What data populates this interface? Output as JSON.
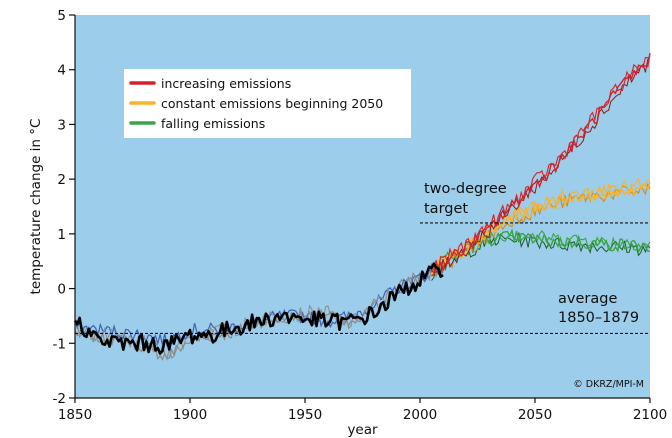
{
  "chart_data": {
    "type": "line",
    "xlabel": "year",
    "ylabel": "temperature change in °C",
    "xlim": [
      1850,
      2100
    ],
    "ylim": [
      -2,
      5
    ],
    "x_ticks": [
      1850,
      1900,
      1950,
      2000,
      2050,
      2100
    ],
    "y_ticks": [
      -2,
      -1,
      0,
      1,
      2,
      3,
      4,
      5
    ],
    "x_tick_labels": [
      "1850",
      "1900",
      "1950",
      "2000",
      "2050",
      "2100"
    ],
    "y_tick_labels": [
      "-2",
      "-1",
      "0",
      "1",
      "2",
      "3",
      "4",
      "5"
    ],
    "grid": false,
    "legend_position": "top-left",
    "colors": {
      "background": "#9ccdea",
      "increasing": "#d2232a",
      "constant": "#f9b22a",
      "falling": "#3aa545",
      "historical_observed": "#000000",
      "historical_model_blue": "#3a62b8",
      "historical_model_gray": "#8a8a8a"
    },
    "series": [
      {
        "name": "increasing emissions",
        "color": "#d2232a",
        "x": [
          2005,
          2010,
          2020,
          2030,
          2040,
          2050,
          2060,
          2070,
          2080,
          2090,
          2100
        ],
        "y": [
          0.3,
          0.45,
          0.75,
          1.1,
          1.5,
          1.9,
          2.3,
          2.8,
          3.3,
          3.8,
          4.2
        ]
      },
      {
        "name": "constant emissions beginning 2050",
        "color": "#f9b22a",
        "x": [
          2005,
          2010,
          2020,
          2030,
          2040,
          2050,
          2060,
          2070,
          2080,
          2090,
          2100
        ],
        "y": [
          0.3,
          0.45,
          0.7,
          1.0,
          1.3,
          1.45,
          1.6,
          1.7,
          1.75,
          1.8,
          1.85
        ]
      },
      {
        "name": "falling emissions",
        "color": "#3aa545",
        "x": [
          2005,
          2010,
          2020,
          2030,
          2040,
          2050,
          2060,
          2070,
          2080,
          2090,
          2100
        ],
        "y": [
          0.3,
          0.45,
          0.7,
          0.9,
          0.95,
          0.9,
          0.85,
          0.85,
          0.8,
          0.8,
          0.75
        ]
      }
    ],
    "historical": {
      "x": [
        1850,
        1860,
        1870,
        1880,
        1890,
        1900,
        1910,
        1920,
        1930,
        1940,
        1950,
        1960,
        1970,
        1980,
        1990,
        2000,
        2010
      ],
      "y_observed": [
        -0.55,
        -0.95,
        -1.0,
        -1.0,
        -1.05,
        -0.85,
        -0.85,
        -0.7,
        -0.6,
        -0.5,
        -0.55,
        -0.6,
        -0.6,
        -0.45,
        -0.1,
        0.15,
        0.4
      ],
      "y_model_blue": [
        -0.7,
        -0.75,
        -0.8,
        -0.85,
        -0.95,
        -0.75,
        -0.75,
        -0.7,
        -0.6,
        -0.5,
        -0.5,
        -0.6,
        -0.5,
        -0.3,
        0.0,
        0.2,
        0.4
      ],
      "y_model_gray": [
        -0.8,
        -0.9,
        -0.95,
        -1.05,
        -1.25,
        -0.95,
        -0.85,
        -0.8,
        -0.6,
        -0.55,
        -0.5,
        -0.5,
        -0.7,
        -0.35,
        -0.05,
        0.2,
        0.35
      ]
    },
    "reference_lines": [
      {
        "label": "two-degree target",
        "y": 1.2,
        "x_start": 2000,
        "x_end": 2100
      },
      {
        "label": "average 1850–1879",
        "y": -0.82,
        "x_start": 1850,
        "x_end": 2100
      }
    ]
  },
  "legend": {
    "items": [
      {
        "label": "increasing emissions",
        "color": "#d2232a"
      },
      {
        "label": "constant emissions beginning 2050",
        "color": "#f9b22a"
      },
      {
        "label": "falling emissions",
        "color": "#3aa545"
      }
    ]
  },
  "annotations": {
    "two_degree_line1": "two-degree",
    "two_degree_line2": "target",
    "average_line1": "average",
    "average_line2": "1850–1879",
    "credit": "© DKRZ/MPI-M"
  }
}
